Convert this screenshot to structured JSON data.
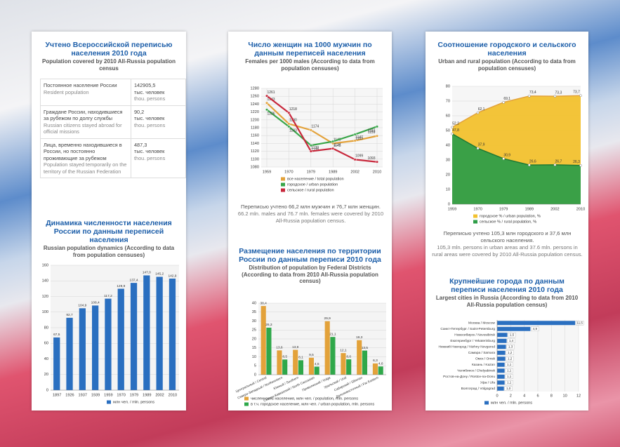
{
  "census_table": {
    "title": "Учтено Всероссийской переписью населения 2010 года",
    "subtitle": "Population covered by 2010 All-Russia population census",
    "rows": [
      {
        "label_ru": "Постоянное население России",
        "label_en": "Resident population",
        "value": "142905,5",
        "unit_ru": "тыс. человек",
        "unit_en": "thou. persons"
      },
      {
        "label_ru": "Граждане России, находившиеся за рубежом по долгу службы",
        "label_en": "Russian citizens stayed abroad for official missions",
        "value": "90,2",
        "unit_ru": "тыс. человек",
        "unit_en": "thou. persons"
      },
      {
        "label_ru": "Лица, временно находившиеся в России, но постоянно проживающие за рубежом",
        "label_en": "Population stayed temporarily on the territory of the Russian Federation",
        "value": "487,3",
        "unit_ru": "тыс. человек",
        "unit_en": "thou. persons"
      }
    ]
  },
  "chart_data": [
    {
      "type": "bar",
      "title": "Динамика численности населения России по данным переписей населения",
      "subtitle": "Russian population dynamics (According to data from population censuses)",
      "categories": [
        "1897",
        "1926",
        "1937",
        "1939",
        "1959",
        "1970",
        "1979",
        "1989",
        "2002",
        "2010"
      ],
      "series": [
        {
          "name": "млн чел. / mln. persons",
          "color": "#2a6fc0",
          "values": [
            67.5,
            92.7,
            104.9,
            108.4,
            117.2,
            129.9,
            137.4,
            147.0,
            145.2,
            142.9
          ],
          "value_labels": [
            "67,5",
            "92,7",
            "104,9",
            "108,4",
            "117,2",
            "129,9",
            "137,4",
            "147,0",
            "145,2",
            "142,9"
          ]
        }
      ],
      "ylim": [
        0,
        160
      ],
      "yticks": [
        0,
        20,
        40,
        60,
        80,
        100,
        120,
        140,
        160
      ],
      "grid": true
    },
    {
      "type": "line",
      "title": "Число женщин на 1000 мужчин по данным переписей населения",
      "subtitle": "Females per 1000 males (According to data from population censuses)",
      "categories": [
        "1959",
        "1970",
        "1979",
        "1989",
        "2002",
        "2010"
      ],
      "series": [
        {
          "name": "все население / total population",
          "color": "#e3a23a",
          "values": [
            1243,
            1190,
            1174,
            1140,
            1147,
            1159
          ]
        },
        {
          "name": "городское / urban population",
          "color": "#3aa64a",
          "values": [
            1226,
            1183,
            1135,
            1145,
            1163,
            1183
          ]
        },
        {
          "name": "сельское / rural population",
          "color": "#c8283c",
          "values": [
            1261,
            1218,
            1120,
            1127,
            1099,
            1093
          ]
        }
      ],
      "ylim": [
        1080,
        1280
      ],
      "yticks": [
        1080,
        1100,
        1120,
        1140,
        1160,
        1180,
        1200,
        1220,
        1240,
        1260,
        1280
      ],
      "grid": true,
      "note_ru": "Переписью учтено 66,2 млн мужчин и 76,7 млн женщин.",
      "note_en": "66.2 mln. males and 76.7 mln. females were covered by 2010 All-Russia population census."
    },
    {
      "type": "bar",
      "title": "Размещение населения по территории России по данным переписи 2010 года",
      "subtitle": "Distribution of population by Federal Districts (According to data from 2010 All-Russia population census)",
      "categories": [
        "Центральный / Central",
        "Северо-Западный / Northwestern",
        "Южный / Southern",
        "Северо-Кавказский / North Caucasian",
        "Приволжский / Volga",
        "Уральский / Ural",
        "Сибирский / Siberian",
        "Дальневосточный / Far Eastern"
      ],
      "series": [
        {
          "name": "численность населения, млн чел. / population, mln. persons",
          "color": "#e3a23a",
          "values": [
            38.4,
            13.6,
            13.9,
            9.5,
            29.9,
            12.1,
            19.3,
            6.3
          ],
          "value_labels": [
            "38,4",
            "13,6",
            "13,9",
            "9,5",
            "29,9",
            "12,1",
            "19,3",
            "6,3"
          ]
        },
        {
          "name": "в т.ч. городское население, млн чел. / urban population, mln. persons",
          "color": "#2fa84a",
          "values": [
            26.3,
            8.5,
            8.1,
            4.5,
            21.1,
            8.6,
            13.5,
            4.6
          ],
          "value_labels": [
            "26,3",
            "8,5",
            "8,1",
            "4,5",
            "21,1",
            "8,6",
            "13,5",
            "4,6"
          ]
        }
      ],
      "ylim": [
        0,
        40
      ],
      "yticks": [
        0,
        5,
        10,
        15,
        20,
        25,
        30,
        35,
        40
      ],
      "grid": true
    },
    {
      "type": "area",
      "title": "Соотношение городского и сельского населения",
      "subtitle": "Urban and rural population (According to data from population censuses)",
      "categories": [
        "1959",
        "1970",
        "1979",
        "1989",
        "2002",
        "2010"
      ],
      "series": [
        {
          "name": "городское % / urban population, %",
          "color": "#f2c12e",
          "values": [
            52.2,
            62.1,
            69.1,
            73.4,
            73.3,
            73.7
          ],
          "value_labels": [
            "52,2",
            "62,1",
            "69,1",
            "73,4",
            "73,3",
            "73,7"
          ]
        },
        {
          "name": "сельское % / rural population, %",
          "color": "#2f9e48",
          "values": [
            47.8,
            37.9,
            30.9,
            26.6,
            26.7,
            26.3
          ],
          "value_labels": [
            "47,8",
            "37,9",
            "30,9",
            "26,6",
            "26,7",
            "26,3"
          ]
        }
      ],
      "ylim": [
        0,
        80
      ],
      "yticks": [
        0,
        10,
        20,
        30,
        40,
        50,
        60,
        70,
        80
      ],
      "grid": true,
      "note_ru": "Переписью учтено 105,3 млн городского и 37,6 млн сельского населения.",
      "note_en": "105,3 mln. persons in urban areas and 37.6 mln. persons in rural areas were covered by 2010 All-Russia population census."
    },
    {
      "type": "barh",
      "title": "Крупнейшие города по данным переписи населения 2010 года",
      "subtitle": "Largest cities in Russia (According to data from 2010 All-Russia population census)",
      "categories": [
        "Москва / Moscow",
        "Санкт-Петербург / Saint-Petersburg",
        "Новосибирск / Novosibirsk",
        "Екатеринбург / Yekaterinburg",
        "Нижний Новгород / Nizhny Novgorod",
        "Самара / Samara",
        "Омск / Omsk",
        "Казань / Kazan",
        "Челябинск / Chelyabinsk",
        "Ростов-на-Дону / Rostov-na-Donu",
        "Уфа / Ufa",
        "Волгоград / Volgograd"
      ],
      "series": [
        {
          "name": "млн чел. / mln. persons",
          "color": "#2a6fc0",
          "values": [
            11.5,
            4.9,
            1.5,
            1.4,
            1.3,
            1.2,
            1.2,
            1.1,
            1.1,
            1.1,
            1.1,
            1.0
          ],
          "value_labels": [
            "11,5",
            "4,9",
            "1,5",
            "1,4",
            "1,3",
            "1,2",
            "1,2",
            "1,1",
            "1,1",
            "1,1",
            "1,1",
            "1,0"
          ]
        }
      ],
      "xlim": [
        0,
        12
      ],
      "xticks": [
        0,
        2,
        4,
        6,
        8,
        10,
        12
      ],
      "grid": true
    }
  ]
}
